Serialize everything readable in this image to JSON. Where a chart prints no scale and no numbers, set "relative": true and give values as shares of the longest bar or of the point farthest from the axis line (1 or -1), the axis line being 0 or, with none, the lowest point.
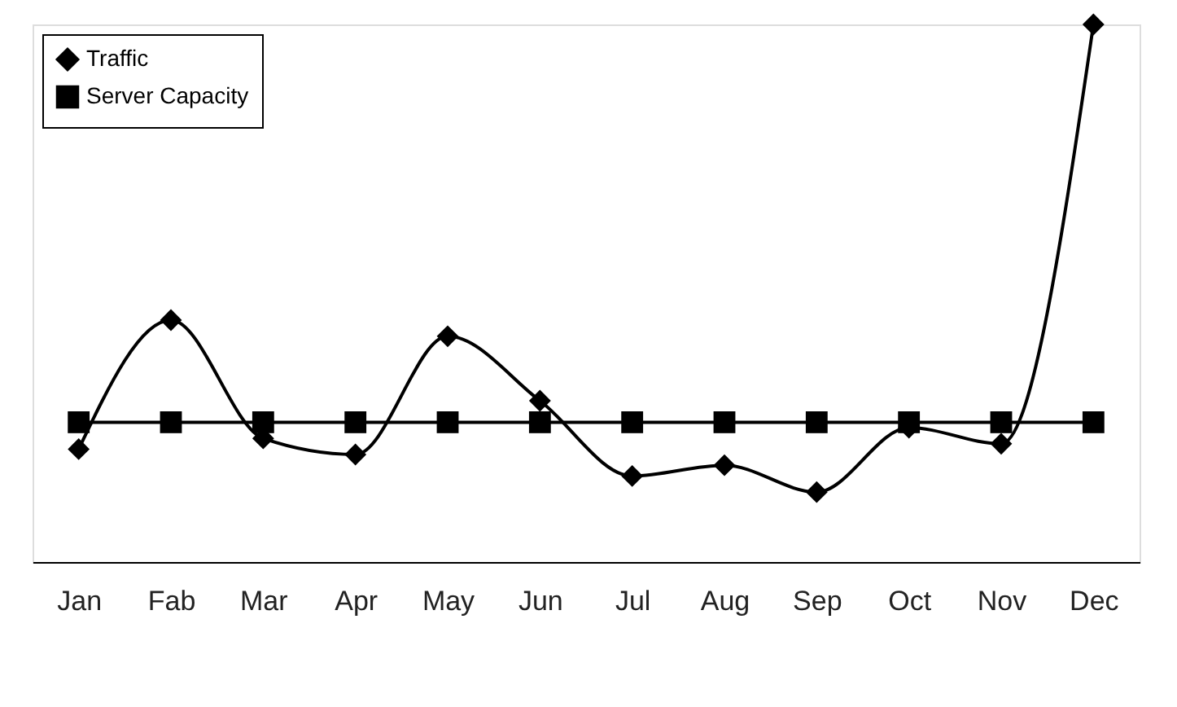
{
  "chart_data": {
    "type": "line",
    "relative": true,
    "categories": [
      "Jan",
      "Fab",
      "Mar",
      "Apr",
      "May",
      "Jun",
      "Jul",
      "Aug",
      "Sep",
      "Oct",
      "Nov",
      "Dec"
    ],
    "series": [
      {
        "name": "Traffic",
        "color": "#000000",
        "marker": "diamond",
        "values": [
          0.21,
          0.45,
          0.23,
          0.2,
          0.42,
          0.3,
          0.16,
          0.18,
          0.13,
          0.25,
          0.22,
          1
        ]
      },
      {
        "name": "Server Capacity",
        "color": "#000000",
        "marker": "square",
        "values": [
          0.26,
          0.26,
          0.26,
          0.26,
          0.26,
          0.26,
          0.26,
          0.26,
          0.26,
          0.26,
          0.26,
          0.26
        ]
      }
    ],
    "legend": "top left",
    "grid": false,
    "line_style": "solid"
  }
}
